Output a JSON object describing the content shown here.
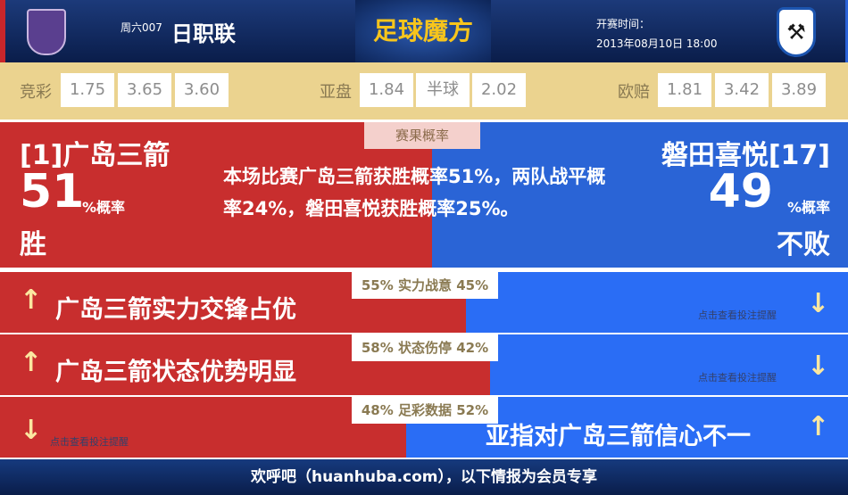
{
  "header": {
    "league_week": "周六007",
    "league_name": "日职联",
    "brand": "足球魔方",
    "kickoff_label": "开赛时间：",
    "kickoff_time": "2013年08月10日 18:00",
    "home_logo": "sanfrecce-hiroshima-crest",
    "away_logo": "jubilo-iwata-crest"
  },
  "odds": {
    "jc_label": "竞彩",
    "jc": [
      "1.75",
      "3.65",
      "3.60"
    ],
    "asian_label": "亚盘",
    "asian": [
      "1.84",
      "半球",
      "2.02"
    ],
    "euro_label": "欧赔",
    "euro": [
      "1.81",
      "3.42",
      "3.89"
    ]
  },
  "prob": {
    "tab": "赛果概率",
    "home_team": "[1]广岛三箭",
    "home_pct": "51",
    "pct_unit": "%概率",
    "home_result": "胜",
    "away_team": "磐田喜悦[17]",
    "away_pct": "49",
    "away_result": "不败",
    "summary": "本场比赛广岛三箭获胜概率51%，两队战平概率24%，磐田喜悦获胜概率25%。"
  },
  "rows": [
    {
      "tab": "55% 实力战意 45%",
      "home_share": 55,
      "text": "广岛三箭实力交锋占优",
      "hint": "点击查看投注提醒"
    },
    {
      "tab": "58% 状态伤停 42%",
      "home_share": 58,
      "text": "广岛三箭状态优势明显",
      "hint": "点击查看投注提醒"
    },
    {
      "tab": "48% 足彩数据 52%",
      "home_share": 48,
      "text": "亚指对广岛三箭信心不一",
      "hint": "点击查看投注提醒"
    }
  ],
  "footer": {
    "text": "欢呼吧（huanhuba.com），以下情报为会员专享"
  }
}
